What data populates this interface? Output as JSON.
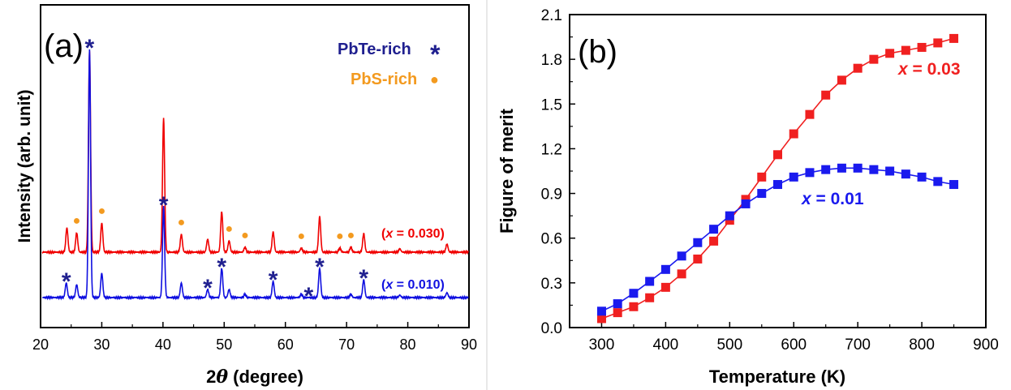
{
  "chart_data": [
    {
      "type": "line",
      "panel_label": "(a)",
      "xlabel_prefix": "2",
      "xlabel_theta": "θ",
      "xlabel_suffix": " (degree)",
      "ylabel": "Intensity (arb. unit)",
      "xlim": [
        20,
        90
      ],
      "xticks": [
        20,
        30,
        40,
        50,
        60,
        70,
        80,
        90
      ],
      "legend": [
        {
          "label": "PbTe-rich",
          "marker": "*",
          "color": "#1f1f8f"
        },
        {
          "label": "PbS-rich",
          "marker": "●",
          "color": "#f39a1f"
        }
      ],
      "series": [
        {
          "label_prefix": "(",
          "label_var": "x",
          "label_value": " = 0.030)",
          "color": "#f00000",
          "peaks": [
            {
              "x": 24.3,
              "h": 30
            },
            {
              "x": 25.9,
              "h": 24
            },
            {
              "x": 28.0,
              "h": 248
            },
            {
              "x": 30.0,
              "h": 36
            },
            {
              "x": 40.1,
              "h": 165
            },
            {
              "x": 43.0,
              "h": 22
            },
            {
              "x": 47.3,
              "h": 16
            },
            {
              "x": 49.6,
              "h": 50
            },
            {
              "x": 50.8,
              "h": 14
            },
            {
              "x": 53.4,
              "h": 6
            },
            {
              "x": 58.0,
              "h": 25
            },
            {
              "x": 62.6,
              "h": 5
            },
            {
              "x": 65.6,
              "h": 44
            },
            {
              "x": 68.9,
              "h": 5
            },
            {
              "x": 70.7,
              "h": 6
            },
            {
              "x": 72.8,
              "h": 23
            },
            {
              "x": 78.7,
              "h": 4
            },
            {
              "x": 86.4,
              "h": 10
            }
          ]
        },
        {
          "label_prefix": "(",
          "label_var": "x",
          "label_value": " = 0.010)",
          "color": "#1010e0",
          "peaks": [
            {
              "x": 24.2,
              "h": 18
            },
            {
              "x": 25.9,
              "h": 16
            },
            {
              "x": 28.0,
              "h": 306
            },
            {
              "x": 30.0,
              "h": 30
            },
            {
              "x": 40.1,
              "h": 112
            },
            {
              "x": 43.0,
              "h": 18
            },
            {
              "x": 47.3,
              "h": 10
            },
            {
              "x": 49.6,
              "h": 36
            },
            {
              "x": 50.8,
              "h": 10
            },
            {
              "x": 53.4,
              "h": 4
            },
            {
              "x": 58.0,
              "h": 20
            },
            {
              "x": 62.6,
              "h": 4
            },
            {
              "x": 65.6,
              "h": 36
            },
            {
              "x": 70.7,
              "h": 4
            },
            {
              "x": 72.8,
              "h": 22
            },
            {
              "x": 78.7,
              "h": 3
            },
            {
              "x": 86.4,
              "h": 6
            }
          ]
        }
      ],
      "annotations": [
        {
          "marker": "●",
          "color": "#f39a1f",
          "x": [
            25.9,
            30.0,
            43.0,
            50.8,
            53.4,
            62.6,
            68.9,
            70.7
          ],
          "series_index": 0
        },
        {
          "marker": "*",
          "color": "#1f1f8f",
          "x": [
            24.2,
            28.0,
            40.1,
            47.3,
            49.6,
            58.0,
            63.8,
            65.6,
            72.8
          ],
          "series_index": 1
        }
      ]
    },
    {
      "type": "line",
      "panel_label": "(b)",
      "xlabel": "Temperature (K)",
      "ylabel": "Figure of merit",
      "xlim": [
        250,
        900
      ],
      "ylim": [
        0.0,
        2.1
      ],
      "xticks": [
        300,
        400,
        500,
        600,
        700,
        800,
        900
      ],
      "yticks": [
        0.0,
        0.3,
        0.6,
        0.9,
        1.2,
        1.5,
        1.8,
        2.1
      ],
      "series": [
        {
          "label_var": "x",
          "label_value": " = 0.03",
          "color": "#f02020",
          "x": [
            300,
            325,
            350,
            375,
            400,
            425,
            450,
            475,
            500,
            525,
            550,
            575,
            600,
            625,
            650,
            675,
            700,
            725,
            750,
            775,
            800,
            825,
            850
          ],
          "y": [
            0.06,
            0.1,
            0.14,
            0.2,
            0.27,
            0.36,
            0.46,
            0.58,
            0.72,
            0.86,
            1.01,
            1.16,
            1.3,
            1.43,
            1.56,
            1.66,
            1.74,
            1.8,
            1.84,
            1.86,
            1.88,
            1.91,
            1.94
          ]
        },
        {
          "label_var": "x",
          "label_value": " = 0.01",
          "color": "#1a1aee",
          "x": [
            300,
            325,
            350,
            375,
            400,
            425,
            450,
            475,
            500,
            525,
            550,
            575,
            600,
            625,
            650,
            675,
            700,
            725,
            750,
            775,
            800,
            825,
            850
          ],
          "y": [
            0.11,
            0.16,
            0.23,
            0.31,
            0.39,
            0.48,
            0.57,
            0.66,
            0.75,
            0.83,
            0.9,
            0.96,
            1.01,
            1.04,
            1.06,
            1.07,
            1.07,
            1.06,
            1.05,
            1.03,
            1.01,
            0.98,
            0.96
          ]
        }
      ]
    }
  ]
}
